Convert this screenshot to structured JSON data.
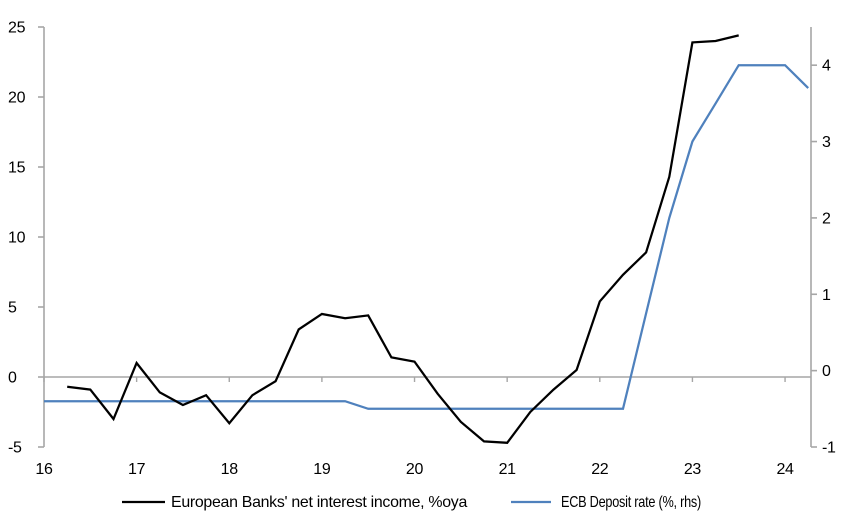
{
  "chart_data": {
    "type": "line",
    "title": "",
    "xlabel": "",
    "ylabel_left": "",
    "ylabel_right": "",
    "grid": "zero-line-only",
    "legend_position": "bottom-center",
    "x_axis": {
      "range": [
        16,
        24.28
      ],
      "tick_values": [
        16,
        17,
        18,
        19,
        20,
        21,
        22,
        23,
        24
      ],
      "tick_labels": [
        "16",
        "17",
        "18",
        "19",
        "20",
        "21",
        "22",
        "23",
        "24"
      ]
    },
    "left_axis": {
      "range": [
        -5,
        25
      ],
      "tick_values": [
        25,
        20,
        15,
        10,
        5,
        0,
        -5
      ],
      "tick_labels": [
        "25",
        "20",
        "15",
        "10",
        "5",
        "0",
        "-5"
      ]
    },
    "right_axis": {
      "range": [
        -1,
        4.5
      ],
      "tick_values": [
        4,
        3,
        2,
        1,
        0,
        -1
      ],
      "tick_labels": [
        "4",
        "3",
        "2",
        "1",
        "0",
        "-1"
      ]
    },
    "series": [
      {
        "name": "European Banks' net interest income, %oya",
        "axis": "left",
        "color": "#000000",
        "x": [
          16.25,
          16.5,
          16.75,
          17.0,
          17.25,
          17.5,
          17.75,
          18.0,
          18.25,
          18.5,
          18.75,
          19.0,
          19.25,
          19.5,
          19.75,
          20.0,
          20.25,
          20.5,
          20.75,
          21.0,
          21.25,
          21.5,
          21.75,
          22.0,
          22.25,
          22.5,
          22.75,
          23.0,
          23.25,
          23.5
        ],
        "values": [
          -0.7,
          -0.9,
          -3.0,
          1.0,
          -1.1,
          -2.0,
          -1.3,
          -3.3,
          -1.3,
          -0.3,
          3.4,
          4.5,
          4.2,
          4.4,
          1.4,
          1.1,
          -1.2,
          -3.2,
          -4.6,
          -4.7,
          -2.5,
          -0.9,
          0.5,
          5.4,
          7.3,
          8.9,
          14.3,
          23.9,
          24.0,
          24.4
        ]
      },
      {
        "name": "ECB Deposit rate (%, rhs)",
        "axis": "right",
        "color": "#4f81bd",
        "x": [
          16.0,
          16.25,
          16.5,
          16.75,
          17.0,
          17.25,
          17.5,
          17.75,
          18.0,
          18.25,
          18.5,
          18.75,
          19.0,
          19.25,
          19.5,
          19.75,
          20.0,
          20.25,
          20.5,
          20.75,
          21.0,
          21.25,
          21.5,
          21.75,
          22.0,
          22.25,
          22.5,
          22.75,
          23.0,
          23.25,
          23.5,
          23.75,
          24.0,
          24.25
        ],
        "values": [
          -0.4,
          -0.4,
          -0.4,
          -0.4,
          -0.4,
          -0.4,
          -0.4,
          -0.4,
          -0.4,
          -0.4,
          -0.4,
          -0.4,
          -0.4,
          -0.4,
          -0.5,
          -0.5,
          -0.5,
          -0.5,
          -0.5,
          -0.5,
          -0.5,
          -0.5,
          -0.5,
          -0.5,
          -0.5,
          -0.5,
          0.75,
          2.0,
          3.0,
          3.5,
          4.0,
          4.0,
          4.0,
          3.7
        ]
      }
    ],
    "colors": {
      "axis": "#a6a6a6",
      "zero_line": "#a6a6a6",
      "text": "#000000",
      "background": "#ffffff"
    }
  }
}
